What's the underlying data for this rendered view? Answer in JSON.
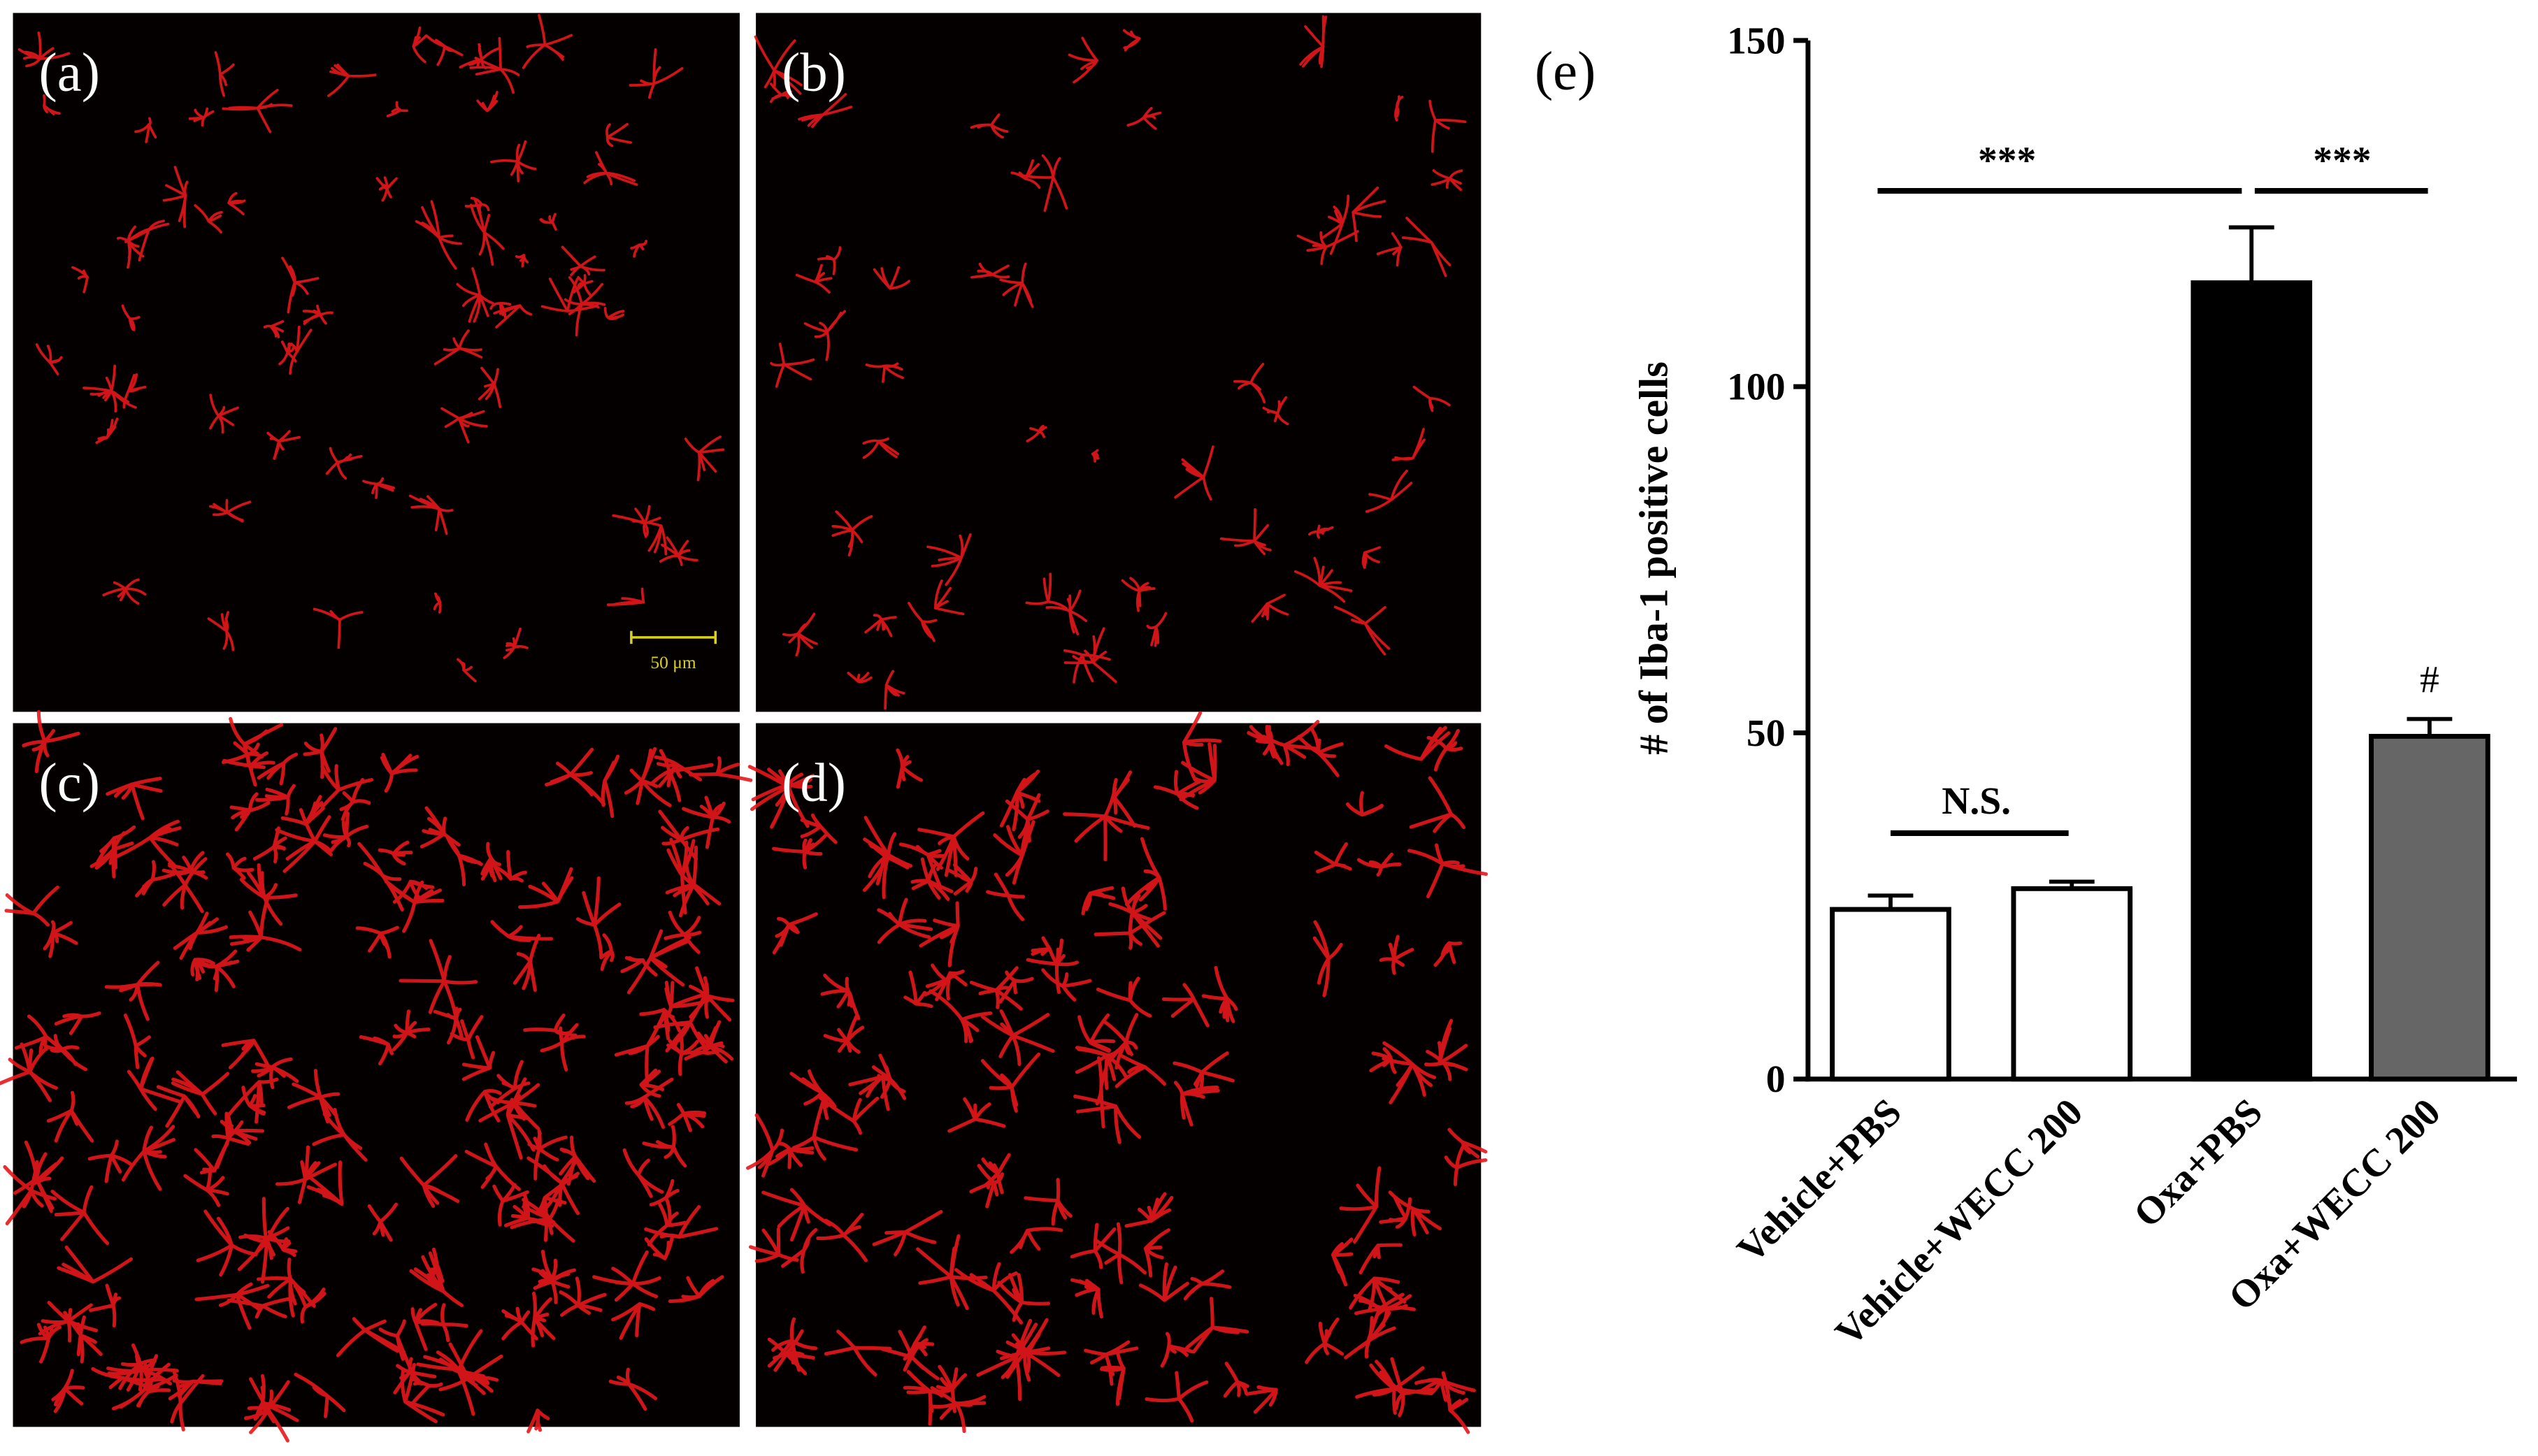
{
  "images": {
    "labels": [
      "(a)",
      "(b)",
      "(c)",
      "(d)"
    ],
    "scale_bar": "50 μm"
  },
  "chart_data": {
    "type": "bar",
    "panel_label": "(e)",
    "y_label": "# of Iba-1 positive cells",
    "categories": [
      "Vehicle+PBS",
      "Vehicle+WECC 200",
      "Oxa+PBS",
      "Oxa+WECC 200"
    ],
    "values": [
      24.5,
      27.5,
      115,
      49.5
    ],
    "errors": [
      2,
      1,
      8,
      2.5
    ],
    "colors": [
      "#ffffff",
      "#ffffff",
      "#000000",
      "#666666"
    ],
    "ylim": [
      0,
      150
    ],
    "yticks": [
      0,
      50,
      100,
      150
    ],
    "annotations": [
      "***",
      "***",
      "N.S.",
      "#"
    ]
  }
}
